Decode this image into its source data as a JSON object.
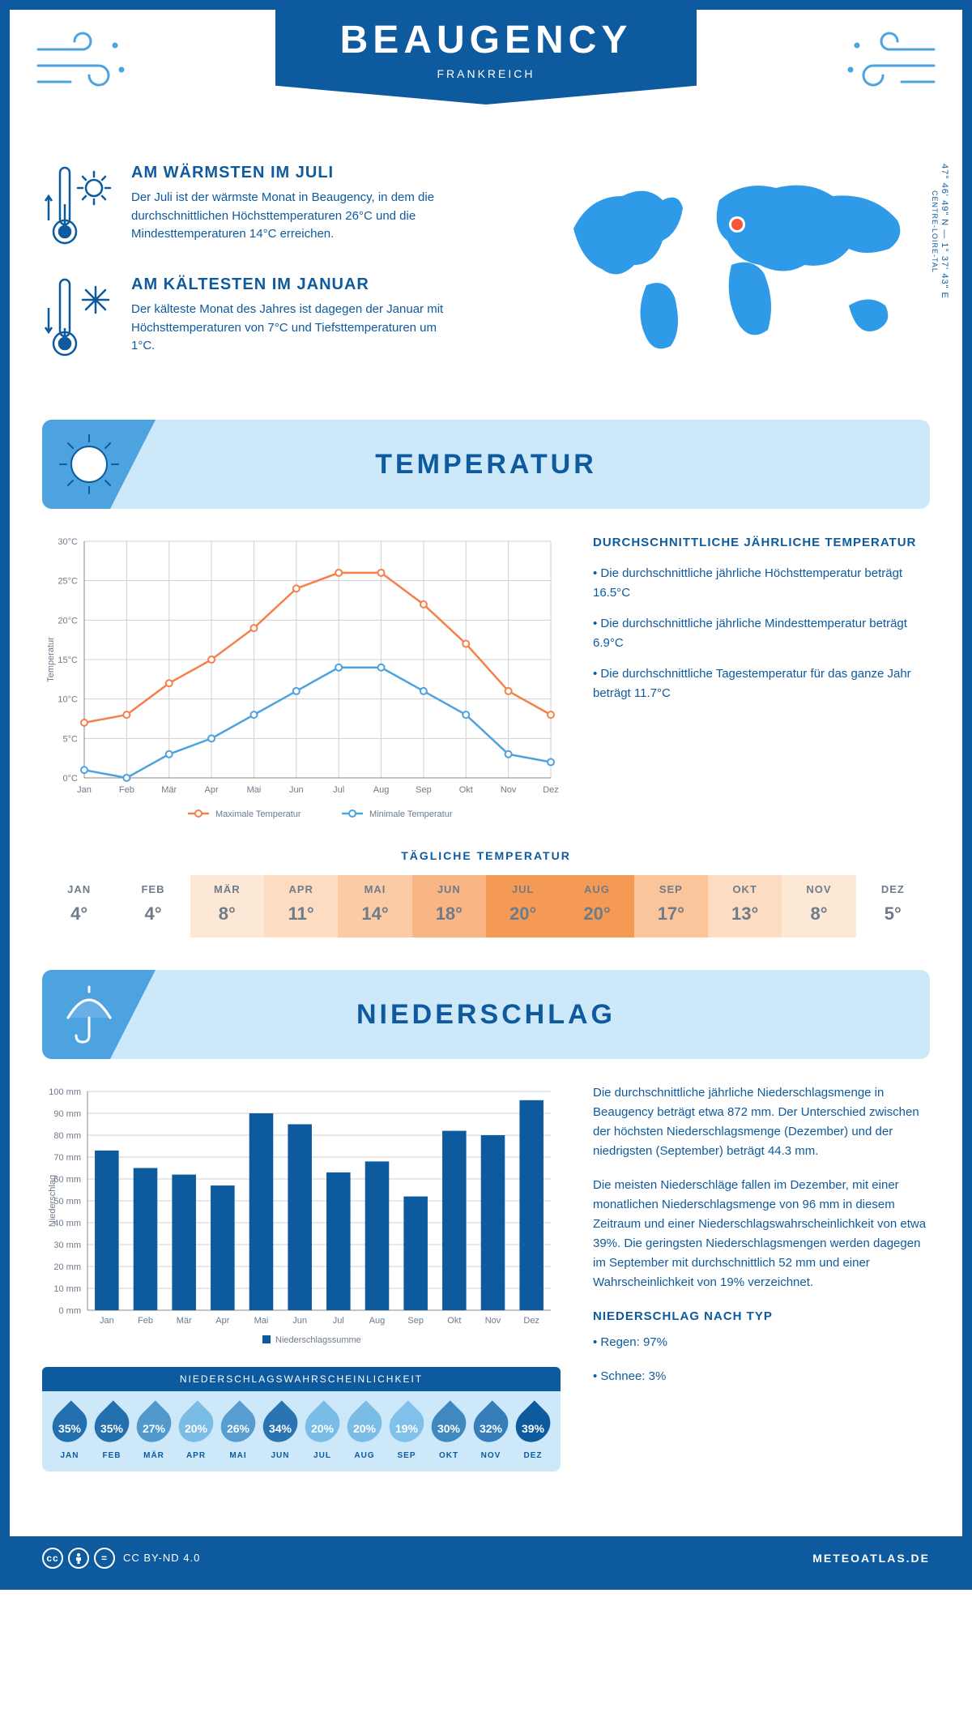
{
  "header": {
    "city": "BEAUGENCY",
    "country": "FRANKREICH"
  },
  "coords": {
    "lat": "47° 46' 49\" N",
    "lon": "1° 37' 43\" E",
    "region": "CENTRE-LOIRE-TAL"
  },
  "warm": {
    "title": "AM WÄRMSTEN IM JULI",
    "text": "Der Juli ist der wärmste Monat in Beaugency, in dem die durchschnittlichen Höchsttemperaturen 26°C und die Mindesttemperaturen 14°C erreichen."
  },
  "cold": {
    "title": "AM KÄLTESTEN IM JANUAR",
    "text": "Der kälteste Monat des Jahres ist dagegen der Januar mit Höchsttemperaturen von 7°C und Tiefsttemperaturen um 1°C."
  },
  "sections": {
    "temp": "TEMPERATUR",
    "precip": "NIEDERSCHLAG"
  },
  "months": [
    "Jan",
    "Feb",
    "Mär",
    "Apr",
    "Mai",
    "Jun",
    "Jul",
    "Aug",
    "Sep",
    "Okt",
    "Nov",
    "Dez"
  ],
  "temp_chart": {
    "type": "line",
    "ylabel": "Temperatur",
    "ylim": [
      0,
      30
    ],
    "ytick_step": 5,
    "y_suffix": "°C",
    "grid_color": "#d0d0d0",
    "series": [
      {
        "name": "Maximale Temperatur",
        "color": "#f5804a",
        "values": [
          7,
          8,
          12,
          15,
          19,
          24,
          26,
          26,
          22,
          17,
          11,
          8
        ]
      },
      {
        "name": "Minimale Temperatur",
        "color": "#4da2e0",
        "values": [
          1,
          0,
          3,
          5,
          8,
          11,
          14,
          14,
          11,
          8,
          3,
          2
        ]
      }
    ]
  },
  "temp_side": {
    "title": "DURCHSCHNITTLICHE JÄHRLICHE TEMPERATUR",
    "bullets": [
      "• Die durchschnittliche jährliche Höchsttemperatur beträgt 16.5°C",
      "• Die durchschnittliche jährliche Mindesttemperatur beträgt 6.9°C",
      "• Die durchschnittliche Tagestemperatur für das ganze Jahr beträgt 11.7°C"
    ]
  },
  "daily_temp": {
    "title": "TÄGLICHE TEMPERATUR",
    "months": [
      "JAN",
      "FEB",
      "MÄR",
      "APR",
      "MAI",
      "JUN",
      "JUL",
      "AUG",
      "SEP",
      "OKT",
      "NOV",
      "DEZ"
    ],
    "values": [
      "4°",
      "4°",
      "8°",
      "11°",
      "14°",
      "18°",
      "20°",
      "20°",
      "17°",
      "13°",
      "8°",
      "5°"
    ],
    "colors": [
      "#ffffff",
      "#ffffff",
      "#fde8d5",
      "#fddcc2",
      "#fbcba6",
      "#f9b684",
      "#f49a55",
      "#f49a55",
      "#fbc59b",
      "#fddcc2",
      "#fde8d5",
      "#ffffff"
    ]
  },
  "precip_chart": {
    "type": "bar",
    "ylabel": "Niederschlag",
    "ylim": [
      0,
      100
    ],
    "ytick_step": 10,
    "y_suffix": " mm",
    "bar_color": "#0d5a9e",
    "grid_color": "#d0d0d0",
    "legend": "Niederschlagssumme",
    "values": [
      73,
      65,
      62,
      57,
      90,
      85,
      63,
      68,
      52,
      82,
      80,
      96
    ]
  },
  "precip_side": {
    "p1": "Die durchschnittliche jährliche Niederschlagsmenge in Beaugency beträgt etwa 872 mm. Der Unterschied zwischen der höchsten Niederschlagsmenge (Dezember) und der niedrigsten (September) beträgt 44.3 mm.",
    "p2": "Die meisten Niederschläge fallen im Dezember, mit einer monatlichen Niederschlagsmenge von 96 mm in diesem Zeitraum und einer Niederschlagswahrscheinlichkeit von etwa 39%. Die geringsten Niederschlagsmengen werden dagegen im September mit durchschnittlich 52 mm und einer Wahrscheinlichkeit von 19% verzeichnet.",
    "type_title": "NIEDERSCHLAG NACH TYP",
    "type_bullets": [
      "• Regen: 97%",
      "• Schnee: 3%"
    ]
  },
  "prob": {
    "title": "NIEDERSCHLAGSWAHRSCHEINLICHKEIT",
    "months": [
      "JAN",
      "FEB",
      "MÄR",
      "APR",
      "MAI",
      "JUN",
      "JUL",
      "AUG",
      "SEP",
      "OKT",
      "NOV",
      "DEZ"
    ],
    "values": [
      35,
      35,
      27,
      20,
      26,
      34,
      20,
      20,
      19,
      30,
      32,
      39
    ],
    "min": 19,
    "max": 39,
    "color_light": "#7fc1ea",
    "color_dark": "#0d5a9e"
  },
  "footer": {
    "license": "CC BY-ND 4.0",
    "brand": "METEOATLAS.DE"
  }
}
